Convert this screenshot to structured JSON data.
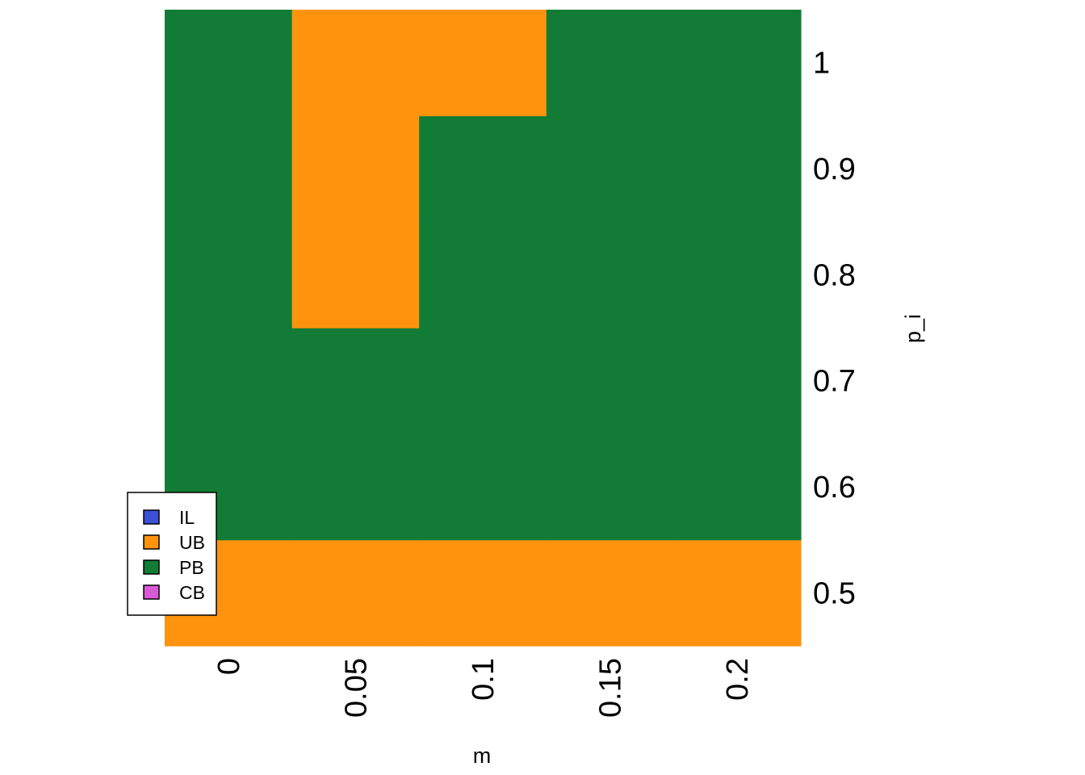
{
  "chart_data": {
    "type": "heatmap",
    "xlabel": "m",
    "ylabel": "p_i",
    "x": [
      0,
      0.05,
      0.1,
      0.15,
      0.2
    ],
    "x_tick_labels": [
      "0",
      "0.05",
      "0.1",
      "0.15",
      "0.2"
    ],
    "y": [
      0.5,
      0.6,
      0.7,
      0.8,
      0.9,
      1
    ],
    "y_tick_labels": [
      "0.5",
      "0.6",
      "0.7",
      "0.8",
      "0.9",
      "1"
    ],
    "categories": [
      "IL",
      "UB",
      "PB",
      "CB"
    ],
    "colors": {
      "IL": "#3b50d6",
      "UB": "#ff930e",
      "PB": "#127c36",
      "CB": "#d95ad6"
    },
    "cells": [
      [
        "UB",
        "PB",
        "PB",
        "PB",
        "PB",
        "PB"
      ],
      [
        "UB",
        "PB",
        "PB",
        "UB",
        "UB",
        "UB"
      ],
      [
        "UB",
        "PB",
        "PB",
        "PB",
        "PB",
        "UB"
      ],
      [
        "UB",
        "PB",
        "PB",
        "PB",
        "PB",
        "PB"
      ],
      [
        "UB",
        "PB",
        "PB",
        "PB",
        "PB",
        "PB"
      ]
    ],
    "cells_note_axes": "cells[i][j] = class at x[i], y[j]",
    "legend": {
      "position": "bottom-left",
      "entries": [
        "IL",
        "UB",
        "PB",
        "CB"
      ]
    },
    "grid": false,
    "y_axis_side": "right"
  }
}
